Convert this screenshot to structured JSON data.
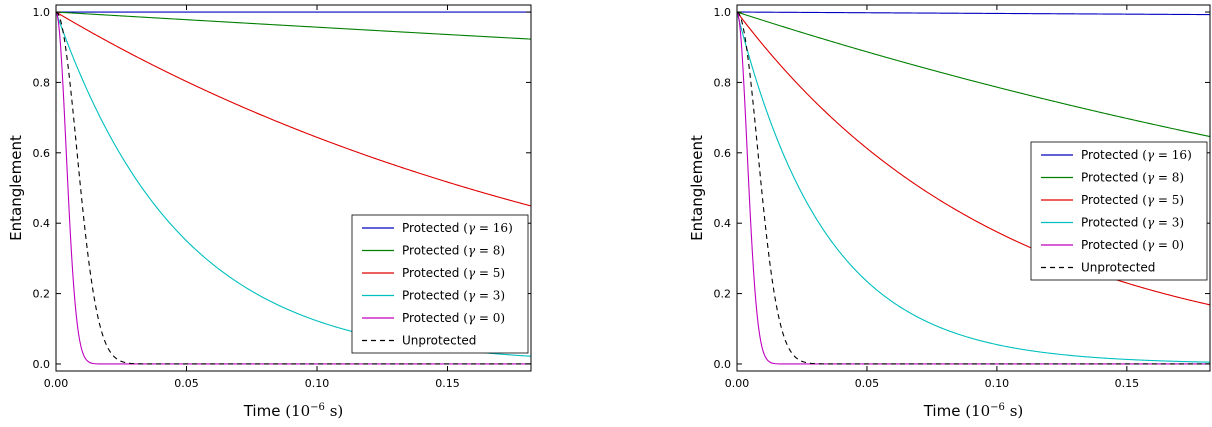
{
  "chart_data": [
    {
      "type": "line",
      "xlabel_text": "Time",
      "xlabel_unit": "(10",
      "xlabel_exp": "−6",
      "xlabel_unit_end": " s)",
      "ylabel": "Entanglement",
      "xlim": [
        0,
        0.182
      ],
      "ylim": [
        -0.02,
        1.02
      ],
      "xticks": [
        0.0,
        0.05,
        0.1,
        0.15
      ],
      "xtick_labels": [
        "0.00",
        "0.05",
        "0.10",
        "0.15"
      ],
      "yticks": [
        0.0,
        0.2,
        0.4,
        0.6,
        0.8,
        1.0
      ],
      "ytick_labels": [
        "0.0",
        "0.2",
        "0.4",
        "0.6",
        "0.8",
        "1.0"
      ],
      "legend_placement": "lower-right",
      "series": [
        {
          "name": "Protected",
          "gamma": "16",
          "color": "#0000bf",
          "dash": "",
          "shape": "exp",
          "rate": 0.0
        },
        {
          "name": "Protected",
          "gamma": "8",
          "color": "#007f00",
          "dash": "",
          "shape": "exp",
          "rate": 0.44
        },
        {
          "name": "Protected",
          "gamma": "5",
          "color": "#e00000",
          "dash": "",
          "shape": "exp",
          "rate": 4.4
        },
        {
          "name": "Protected",
          "gamma": "3",
          "color": "#00bfbf",
          "dash": "",
          "shape": "exp",
          "rate": 21.0
        },
        {
          "name": "Protected",
          "gamma": "0",
          "color": "#bf00bf",
          "dash": "",
          "shape": "exp2",
          "rate": 0.0078
        },
        {
          "name": "Unprotected",
          "gamma": "",
          "color": "#000000",
          "dash": "5,4",
          "shape": "exp2",
          "rate": 0.016
        }
      ]
    },
    {
      "type": "line",
      "xlabel_text": "Time",
      "xlabel_unit": "(10",
      "xlabel_exp": "−6",
      "xlabel_unit_end": " s)",
      "ylabel": "Entanglement",
      "xlim": [
        0,
        0.182
      ],
      "ylim": [
        -0.02,
        1.02
      ],
      "xticks": [
        0.0,
        0.05,
        0.1,
        0.15
      ],
      "xtick_labels": [
        "0.00",
        "0.05",
        "0.10",
        "0.15"
      ],
      "yticks": [
        0.0,
        0.2,
        0.4,
        0.6,
        0.8,
        1.0
      ],
      "ytick_labels": [
        "0.0",
        "0.2",
        "0.4",
        "0.6",
        "0.8",
        "1.0"
      ],
      "legend_placement": "center-right",
      "series": [
        {
          "name": "Protected",
          "gamma": "16",
          "color": "#0000bf",
          "dash": "",
          "shape": "exp",
          "rate": 0.04
        },
        {
          "name": "Protected",
          "gamma": "8",
          "color": "#007f00",
          "dash": "",
          "shape": "exp",
          "rate": 2.4
        },
        {
          "name": "Protected",
          "gamma": "5",
          "color": "#e00000",
          "dash": "",
          "shape": "exp",
          "rate": 9.8
        },
        {
          "name": "Protected",
          "gamma": "3",
          "color": "#00bfbf",
          "dash": "",
          "shape": "exp",
          "rate": 29.0
        },
        {
          "name": "Protected",
          "gamma": "0",
          "color": "#bf00bf",
          "dash": "",
          "shape": "exp2",
          "rate": 0.0078
        },
        {
          "name": "Unprotected",
          "gamma": "",
          "color": "#000000",
          "dash": "5,4",
          "shape": "exp2",
          "rate": 0.016
        }
      ]
    }
  ]
}
